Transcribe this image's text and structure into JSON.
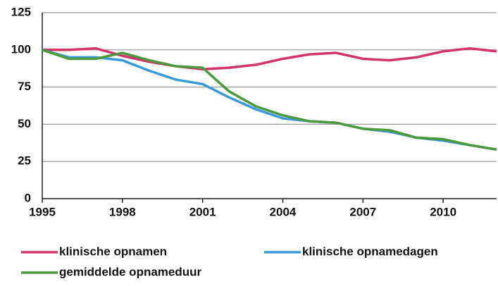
{
  "chart_data": {
    "type": "line",
    "x": [
      1995,
      1996,
      1997,
      1998,
      1999,
      2000,
      2001,
      2002,
      2003,
      2004,
      2005,
      2006,
      2007,
      2008,
      2009,
      2010,
      2011,
      2012
    ],
    "series": [
      {
        "name": "klinische opnamen",
        "color": "#d4336a",
        "values": [
          100,
          100,
          101,
          96,
          92,
          89,
          87,
          88,
          90,
          94,
          97,
          98,
          94,
          93,
          95,
          99,
          101,
          99
        ]
      },
      {
        "name": "klinische opnamedagen",
        "color": "#3a9ad9",
        "values": [
          100,
          95,
          95,
          93,
          86,
          80,
          77,
          68,
          60,
          54,
          52,
          51,
          47,
          45,
          41,
          39,
          36,
          33
        ]
      },
      {
        "name": "gemiddelde opnameduur",
        "color": "#4a9a3c",
        "values": [
          100,
          94,
          94,
          98,
          93,
          89,
          88,
          72,
          62,
          56,
          52,
          51,
          47,
          46,
          41,
          40,
          36,
          33
        ]
      }
    ],
    "xlim": [
      1995,
      2012
    ],
    "xticks": [
      1995,
      1998,
      2001,
      2004,
      2007,
      2010
    ],
    "ylim": [
      0,
      125
    ],
    "yticks": [
      0,
      25,
      50,
      75,
      100,
      125
    ],
    "grid": true
  }
}
